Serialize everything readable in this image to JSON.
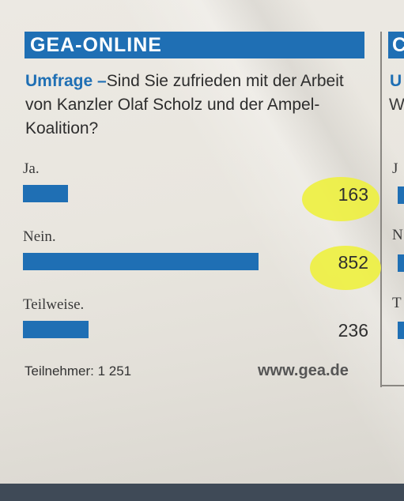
{
  "header": {
    "title": "GEA-ONLINE",
    "next_column_title": "C"
  },
  "question": {
    "kicker": "Umfrage",
    "dash": "–",
    "text": "Sind Sie zufrieden mit der Arbeit von Kanzler Olaf Scholz und der Ampel-Koalition?"
  },
  "next_column": {
    "kicker_fragment": "U",
    "text_fragment": "W",
    "labels": [
      "J",
      "N",
      "T"
    ]
  },
  "chart_data": {
    "type": "bar",
    "categories": [
      "Ja.",
      "Nein.",
      "Teilweise."
    ],
    "values": [
      163,
      852,
      236
    ],
    "value_labels": [
      "163",
      "852",
      "236"
    ],
    "highlighted": [
      "163",
      "852"
    ],
    "bar_color": "#1f6fb4",
    "highlight_color": "#eef03a"
  },
  "footer": {
    "participants": "Teilnehmer: 1 251",
    "website": "www.gea.de"
  }
}
